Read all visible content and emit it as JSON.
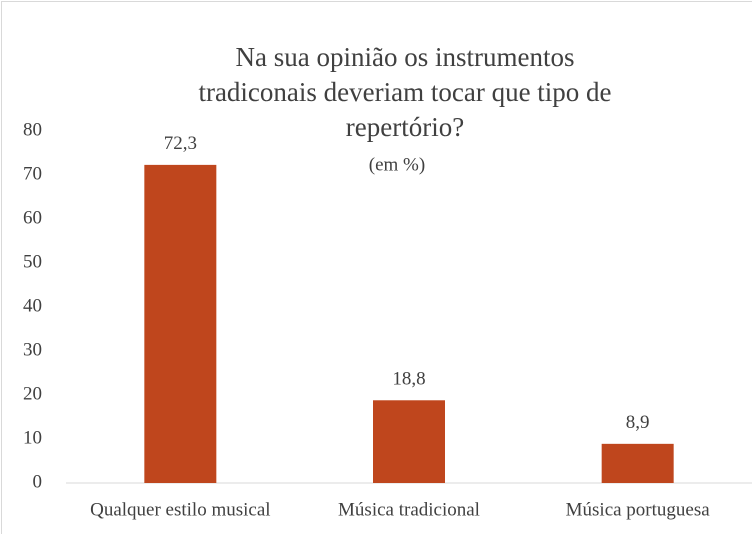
{
  "chart_data": {
    "type": "bar",
    "title": "Na sua opinião os instrumentos tradiconais deveriam tocar que tipo de repertório?",
    "subtitle": "(em %)",
    "categories": [
      "Qualquer estilo musical",
      "Música tradicional",
      "Música portuguesa"
    ],
    "values": [
      72.3,
      18.8,
      8.9
    ],
    "value_labels": [
      "72,3",
      "18,8",
      "8,9"
    ],
    "color": "#bf461d",
    "ylim": [
      0,
      80
    ],
    "yticks": [
      0,
      10,
      20,
      30,
      40,
      50,
      60,
      70,
      80
    ],
    "grid": false
  }
}
